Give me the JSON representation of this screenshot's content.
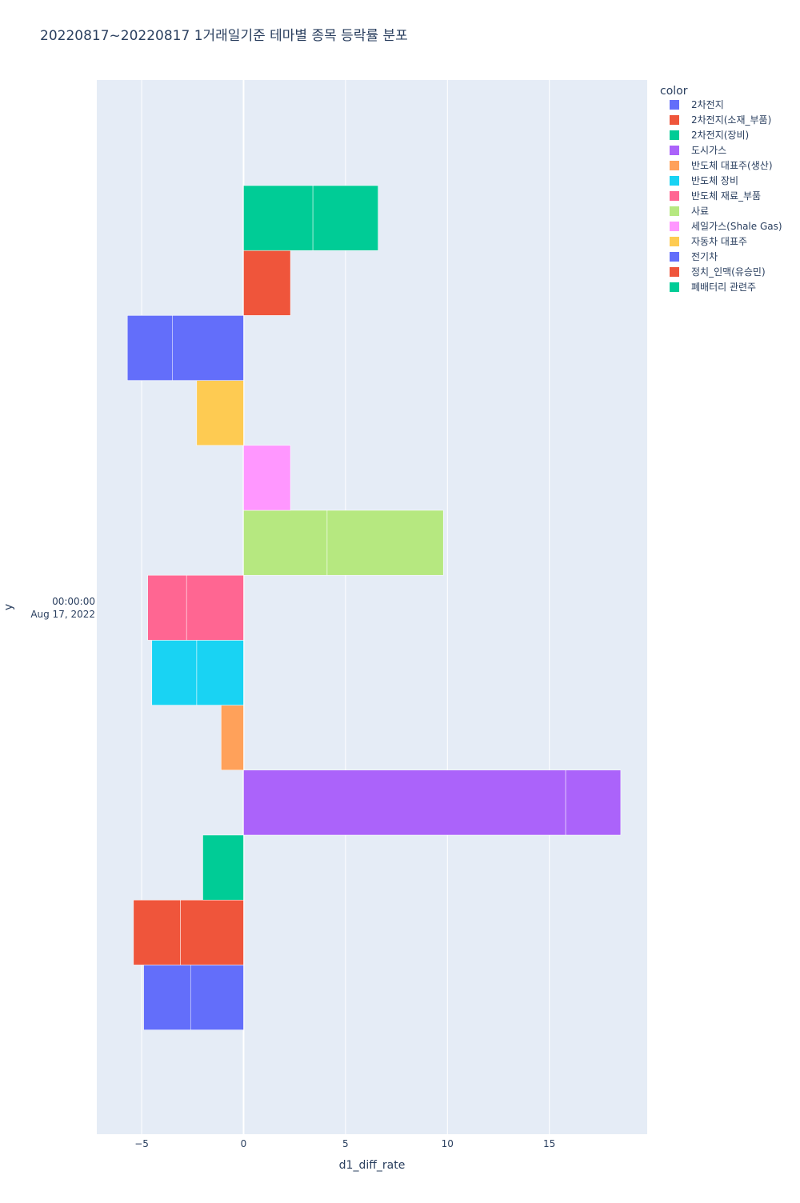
{
  "chart_data": {
    "type": "bar",
    "orientation": "horizontal",
    "barmode": "relative",
    "title": "20220817~20220817 1거래일기준 테마별 종목 등락률 분포",
    "xlabel": "d1_diff_rate",
    "ylabel": "y",
    "y_tick": {
      "line1": "00:00:00",
      "line2": "Aug 17, 2022"
    },
    "xlim": [
      -7.2,
      19.8
    ],
    "xticks": [
      {
        "value": -5,
        "label": "−5"
      },
      {
        "value": 0,
        "label": "0"
      },
      {
        "value": 5,
        "label": "5"
      },
      {
        "value": 10,
        "label": "10"
      },
      {
        "value": 15,
        "label": "15"
      }
    ],
    "grid": true,
    "plot_bgcolor": "#E5ECF6",
    "legend": {
      "title": "color",
      "placement": "right"
    },
    "series": [
      {
        "name": "2차전지",
        "color": "#636EFA",
        "segments": [
          -2.6,
          -2.3
        ]
      },
      {
        "name": "2차전지(소재_부품)",
        "color": "#EF553B",
        "segments": [
          -3.1,
          -2.3
        ]
      },
      {
        "name": "2차전지(장비)",
        "color": "#00CC96",
        "segments": [
          -2.0
        ]
      },
      {
        "name": "도시가스",
        "color": "#AB63FA",
        "segments": [
          15.8,
          2.7
        ]
      },
      {
        "name": "반도체 대표주(생산)",
        "color": "#FFA15A",
        "segments": [
          -1.1
        ]
      },
      {
        "name": "반도체 장비",
        "color": "#19D3F3",
        "segments": [
          -2.3,
          -2.2
        ]
      },
      {
        "name": "반도체 재료_부품",
        "color": "#FF6692",
        "segments": [
          -2.8,
          -1.9
        ]
      },
      {
        "name": "사료",
        "color": "#B6E880",
        "segments": [
          4.1,
          5.7
        ]
      },
      {
        "name": "세일가스(Shale Gas)",
        "color": "#FF97FF",
        "segments": [
          2.3
        ]
      },
      {
        "name": "자동차 대표주",
        "color": "#FECB52",
        "segments": [
          -2.3
        ]
      },
      {
        "name": "전기차",
        "color": "#636EFA",
        "segments": [
          -3.5,
          -2.2
        ]
      },
      {
        "name": "정치_인맥(유승민)",
        "color": "#EF553B",
        "segments": [
          2.3
        ]
      },
      {
        "name": "폐배터리 관련주",
        "color": "#00CC96",
        "segments": [
          3.4,
          3.2
        ]
      }
    ]
  }
}
